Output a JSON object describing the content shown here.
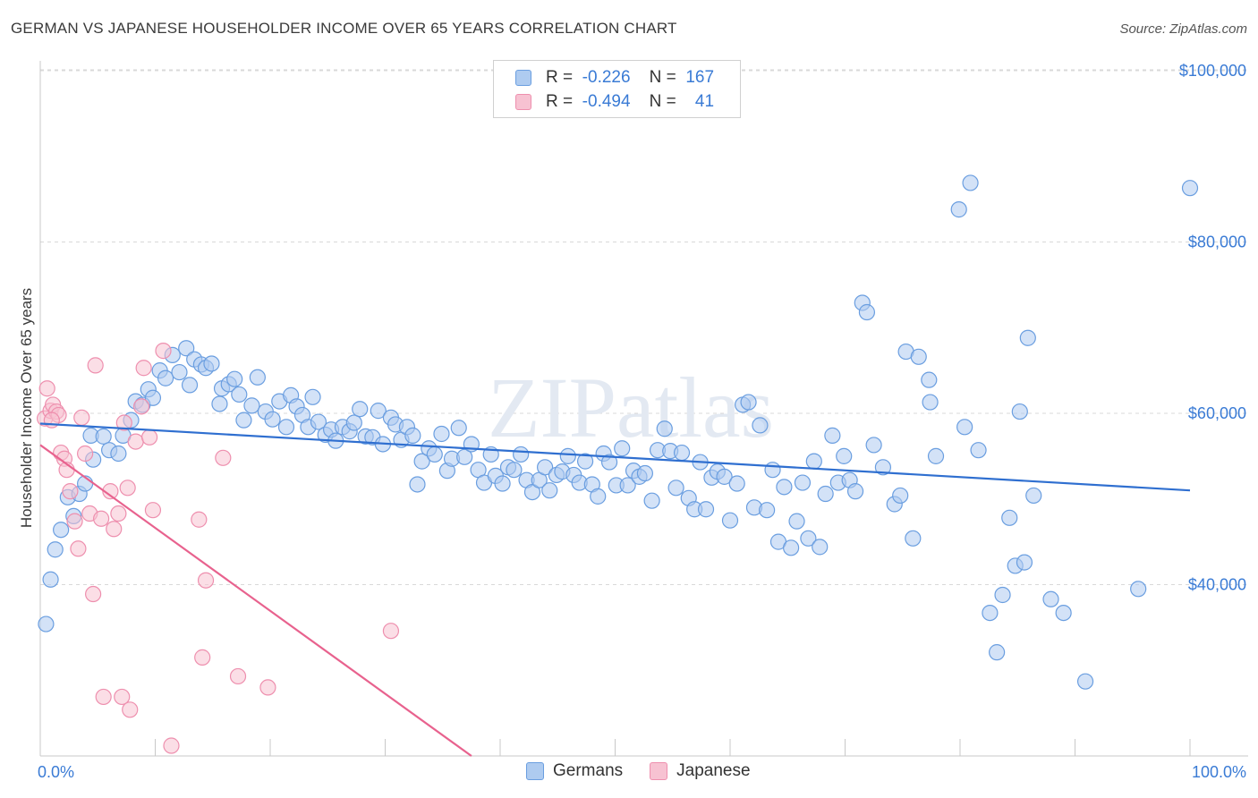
{
  "title": "GERMAN VS JAPANESE HOUSEHOLDER INCOME OVER 65 YEARS CORRELATION CHART",
  "source": "Source: ZipAtlas.com",
  "watermark": "ZIPatlas",
  "colors": {
    "blue_fill": "#aecbf0",
    "blue_stroke": "#6a9ee0",
    "blue_line": "#2f6fd0",
    "pink_fill": "#f7c2d2",
    "pink_stroke": "#ee8fae",
    "pink_line": "#e8628e",
    "tick_label": "#3a7bd5",
    "grid": "#d8d8d8"
  },
  "legend": {
    "rows": [
      {
        "r_label": "R =",
        "r_value": "-0.226",
        "n_label": "N =",
        "n_value": "167"
      },
      {
        "r_label": "R =",
        "r_value": "-0.494",
        "n_label": "N =",
        "n_value": "41"
      }
    ]
  },
  "bottom_legend": [
    "Germans",
    "Japanese"
  ],
  "chart_data": {
    "type": "scatter",
    "title": "GERMAN VS JAPANESE HOUSEHOLDER INCOME OVER 65 YEARS CORRELATION CHART",
    "xlabel": "",
    "ylabel": "Householder Income Over 65 years",
    "xlim": [
      0,
      100
    ],
    "ylim": [
      20000,
      102000
    ],
    "x_tick_labels": [
      "0.0%",
      "100.0%"
    ],
    "y_ticks": [
      40000,
      60000,
      80000,
      100000
    ],
    "y_tick_labels": [
      "$40,000",
      "$60,000",
      "$80,000",
      "$100,000"
    ],
    "series": [
      {
        "name": "Germans",
        "trend": {
          "x": [
            0,
            100
          ],
          "y": [
            58800,
            51000
          ]
        },
        "points": [
          [
            0.5,
            35400
          ],
          [
            0.9,
            40600
          ],
          [
            1.3,
            44100
          ],
          [
            1.8,
            46400
          ],
          [
            2.4,
            50200
          ],
          [
            2.9,
            48000
          ],
          [
            3.4,
            50600
          ],
          [
            3.9,
            51800
          ],
          [
            4.4,
            57400
          ],
          [
            4.6,
            54600
          ],
          [
            5.5,
            57300
          ],
          [
            6.0,
            55700
          ],
          [
            6.8,
            55300
          ],
          [
            7.2,
            57400
          ],
          [
            7.9,
            59200
          ],
          [
            8.3,
            61400
          ],
          [
            8.9,
            61000
          ],
          [
            9.4,
            62800
          ],
          [
            9.8,
            61800
          ],
          [
            10.4,
            65000
          ],
          [
            10.9,
            64100
          ],
          [
            11.5,
            66800
          ],
          [
            12.1,
            64800
          ],
          [
            12.7,
            67600
          ],
          [
            13.0,
            63300
          ],
          [
            13.4,
            66300
          ],
          [
            14.0,
            65700
          ],
          [
            14.4,
            65300
          ],
          [
            14.9,
            65800
          ],
          [
            15.6,
            61100
          ],
          [
            15.8,
            62900
          ],
          [
            16.4,
            63400
          ],
          [
            16.9,
            64000
          ],
          [
            17.3,
            62200
          ],
          [
            17.7,
            59200
          ],
          [
            18.4,
            60900
          ],
          [
            18.9,
            64200
          ],
          [
            19.6,
            60200
          ],
          [
            20.2,
            59300
          ],
          [
            20.8,
            61400
          ],
          [
            21.4,
            58400
          ],
          [
            21.8,
            62100
          ],
          [
            22.3,
            60800
          ],
          [
            22.8,
            59800
          ],
          [
            23.3,
            58400
          ],
          [
            23.7,
            61900
          ],
          [
            24.2,
            59000
          ],
          [
            24.8,
            57500
          ],
          [
            25.3,
            58100
          ],
          [
            25.7,
            56800
          ],
          [
            26.3,
            58400
          ],
          [
            26.9,
            57900
          ],
          [
            27.3,
            58900
          ],
          [
            27.8,
            60500
          ],
          [
            28.3,
            57300
          ],
          [
            28.9,
            57200
          ],
          [
            29.4,
            60300
          ],
          [
            29.8,
            56400
          ],
          [
            30.5,
            59500
          ],
          [
            30.9,
            58700
          ],
          [
            31.4,
            56900
          ],
          [
            31.9,
            58400
          ],
          [
            32.4,
            57400
          ],
          [
            32.8,
            51700
          ],
          [
            33.2,
            54400
          ],
          [
            33.8,
            55900
          ],
          [
            34.3,
            55200
          ],
          [
            34.9,
            57600
          ],
          [
            35.4,
            53300
          ],
          [
            35.8,
            54700
          ],
          [
            36.4,
            58300
          ],
          [
            36.9,
            54900
          ],
          [
            37.5,
            56400
          ],
          [
            38.1,
            53400
          ],
          [
            38.6,
            51900
          ],
          [
            39.2,
            55200
          ],
          [
            39.6,
            52700
          ],
          [
            40.2,
            51800
          ],
          [
            40.7,
            53700
          ],
          [
            41.2,
            53400
          ],
          [
            41.8,
            55200
          ],
          [
            42.3,
            52200
          ],
          [
            42.8,
            50800
          ],
          [
            43.4,
            52200
          ],
          [
            43.9,
            53700
          ],
          [
            44.3,
            51000
          ],
          [
            44.9,
            52800
          ],
          [
            45.4,
            53200
          ],
          [
            45.9,
            55000
          ],
          [
            46.4,
            52800
          ],
          [
            46.9,
            51900
          ],
          [
            47.4,
            54400
          ],
          [
            48.0,
            51700
          ],
          [
            48.5,
            50300
          ],
          [
            49.0,
            55300
          ],
          [
            49.5,
            54300
          ],
          [
            50.1,
            51600
          ],
          [
            50.6,
            55900
          ],
          [
            51.1,
            51600
          ],
          [
            51.6,
            53300
          ],
          [
            52.1,
            52600
          ],
          [
            52.6,
            53000
          ],
          [
            53.2,
            49800
          ],
          [
            53.7,
            55700
          ],
          [
            54.3,
            58200
          ],
          [
            54.8,
            55600
          ],
          [
            55.3,
            51300
          ],
          [
            55.8,
            55400
          ],
          [
            56.4,
            50100
          ],
          [
            56.9,
            48800
          ],
          [
            57.4,
            54300
          ],
          [
            57.9,
            48800
          ],
          [
            58.4,
            52500
          ],
          [
            58.9,
            53200
          ],
          [
            59.5,
            52600
          ],
          [
            60.0,
            47500
          ],
          [
            60.6,
            51800
          ],
          [
            61.1,
            61000
          ],
          [
            61.6,
            61300
          ],
          [
            62.1,
            49000
          ],
          [
            62.6,
            58600
          ],
          [
            63.2,
            48700
          ],
          [
            63.7,
            53400
          ],
          [
            64.2,
            45000
          ],
          [
            64.7,
            51400
          ],
          [
            65.3,
            44300
          ],
          [
            65.8,
            47400
          ],
          [
            66.3,
            51900
          ],
          [
            66.8,
            45400
          ],
          [
            67.3,
            54400
          ],
          [
            67.8,
            44400
          ],
          [
            68.3,
            50600
          ],
          [
            68.9,
            57400
          ],
          [
            69.4,
            51900
          ],
          [
            69.9,
            55000
          ],
          [
            70.4,
            52200
          ],
          [
            70.9,
            50900
          ],
          [
            71.5,
            72900
          ],
          [
            71.9,
            71800
          ],
          [
            72.5,
            56300
          ],
          [
            73.3,
            53700
          ],
          [
            74.3,
            49400
          ],
          [
            74.8,
            50400
          ],
          [
            75.3,
            67200
          ],
          [
            75.9,
            45400
          ],
          [
            76.4,
            66600
          ],
          [
            77.3,
            63900
          ],
          [
            77.4,
            61300
          ],
          [
            77.9,
            55000
          ],
          [
            79.9,
            83800
          ],
          [
            80.4,
            58400
          ],
          [
            80.9,
            86900
          ],
          [
            81.6,
            55700
          ],
          [
            82.6,
            36700
          ],
          [
            83.2,
            32100
          ],
          [
            83.7,
            38800
          ],
          [
            84.3,
            47800
          ],
          [
            84.8,
            42200
          ],
          [
            85.6,
            42600
          ],
          [
            85.9,
            68800
          ],
          [
            85.2,
            60200
          ],
          [
            86.4,
            50400
          ],
          [
            87.9,
            38300
          ],
          [
            89.0,
            36700
          ],
          [
            90.9,
            28700
          ],
          [
            95.5,
            39500
          ],
          [
            100.0,
            86300
          ]
        ]
      },
      {
        "name": "Japanese",
        "trend": {
          "x": [
            0,
            37.5
          ],
          "y": [
            56300,
            20000
          ]
        },
        "points": [
          [
            0.4,
            59400
          ],
          [
            0.6,
            62900
          ],
          [
            0.9,
            60300
          ],
          [
            1.1,
            61000
          ],
          [
            1.4,
            60200
          ],
          [
            1.6,
            59800
          ],
          [
            1.8,
            55400
          ],
          [
            2.1,
            54700
          ],
          [
            2.3,
            53400
          ],
          [
            2.6,
            50900
          ],
          [
            3.0,
            47400
          ],
          [
            3.3,
            44200
          ],
          [
            3.6,
            59500
          ],
          [
            3.9,
            55300
          ],
          [
            4.3,
            48300
          ],
          [
            4.6,
            38900
          ],
          [
            4.8,
            65600
          ],
          [
            5.3,
            47700
          ],
          [
            5.5,
            26900
          ],
          [
            6.1,
            50900
          ],
          [
            6.4,
            46500
          ],
          [
            6.8,
            48300
          ],
          [
            7.1,
            26900
          ],
          [
            7.3,
            58900
          ],
          [
            7.6,
            51300
          ],
          [
            7.8,
            25400
          ],
          [
            8.3,
            56700
          ],
          [
            8.8,
            60800
          ],
          [
            9.0,
            65300
          ],
          [
            9.5,
            57200
          ],
          [
            9.8,
            48700
          ],
          [
            10.7,
            67300
          ],
          [
            11.4,
            21200
          ],
          [
            13.8,
            47600
          ],
          [
            14.1,
            31500
          ],
          [
            14.4,
            40500
          ],
          [
            15.9,
            54800
          ],
          [
            17.2,
            29300
          ],
          [
            19.8,
            28000
          ],
          [
            30.5,
            34600
          ],
          [
            1.0,
            59200
          ]
        ]
      }
    ]
  }
}
